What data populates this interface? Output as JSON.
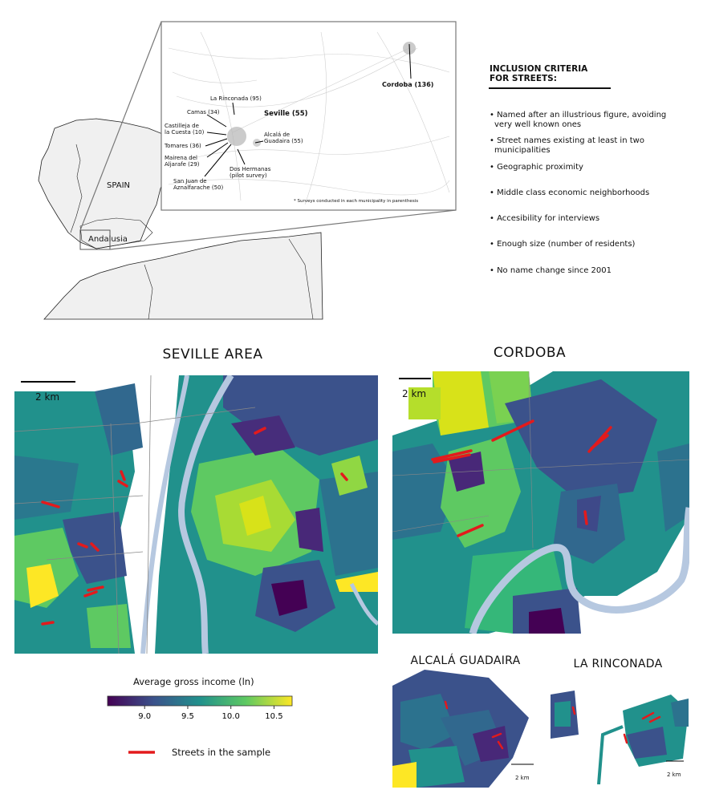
{
  "overview": {
    "country_label": "SPAIN",
    "region_label": "Andalusia"
  },
  "inset": {
    "cities": {
      "cordoba": "Cordoba (136)",
      "seville": "Seville (55)",
      "la_rinconada": "La Rinconada (95)",
      "camas": "Camas (34)",
      "castilleja_1": "Castilleja de",
      "castilleja_2": "la Cuesta (10)",
      "tomares": "Tomares (36)",
      "mairena_1": "Mairena del",
      "mairena_2": "Aljarafe (29)",
      "sanjuan_1": "San Juan de",
      "sanjuan_2": "Aznalfarache (50)",
      "dos_hermanas_1": "Dos Hermanas",
      "dos_hermanas_2": "(pilot survey)",
      "alcala_1": "Alcalá de",
      "alcala_2": "Guadaira (55)"
    },
    "footnote": "* Surveys conducted in each municipality in parenthesis"
  },
  "criteria": {
    "title_line1": "INCLUSION CRITERIA",
    "title_line2": "FOR STREETS:",
    "items": [
      [
        "• Named after an illustrious figure, avoiding",
        "very well known ones"
      ],
      [
        "• Street names existing at least in two",
        "municipalities"
      ],
      [
        "• Geographic proximity"
      ],
      [
        "• Middle class economic neighborhoods"
      ],
      [
        "• Accesibility for interviews"
      ],
      [
        "• Enough size (number of residents)"
      ],
      [
        "• No name change since 2001"
      ]
    ]
  },
  "panels": {
    "seville": {
      "title": "SEVILLE AREA",
      "scale": "2 km"
    },
    "cordoba": {
      "title": "CORDOBA",
      "scale": "2 km"
    },
    "alcala": {
      "title": "ALCALÁ GUADAIRA",
      "scale": "2 km"
    },
    "rinconada": {
      "title": "LA RINCONADA",
      "scale": "2 km"
    }
  },
  "legend": {
    "title": "Average gross income (ln)",
    "ticks": [
      "9.0",
      "9.5",
      "10.0",
      "10.5"
    ],
    "tick_values": [
      9.0,
      9.5,
      10.0,
      10.5
    ],
    "range": [
      8.57,
      10.71
    ],
    "streets_label": "Streets in the sample",
    "street_color": "#e31a1c"
  },
  "colors": {
    "viridis": [
      "#440154",
      "#3b528b",
      "#21918c",
      "#5ec962",
      "#fde725"
    ],
    "river": "#b6c8e0",
    "land": "#f0f0f0"
  }
}
